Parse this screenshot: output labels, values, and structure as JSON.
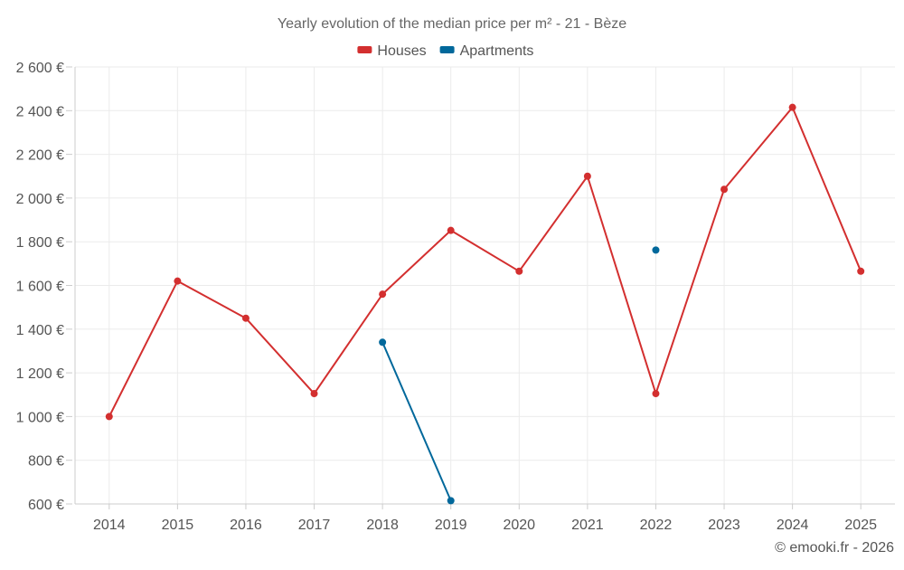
{
  "chart_data": {
    "type": "line",
    "title": "Yearly evolution of the median price per m² - 21 - Bèze",
    "categories": [
      "2014",
      "2015",
      "2016",
      "2017",
      "2018",
      "2019",
      "2020",
      "2021",
      "2022",
      "2023",
      "2024",
      "2025"
    ],
    "series": [
      {
        "name": "Houses",
        "color": "#d32f2f",
        "values": [
          1000,
          1620,
          1450,
          1105,
          1560,
          1852,
          1665,
          2100,
          1105,
          2040,
          2415,
          1665
        ]
      },
      {
        "name": "Apartments",
        "color": "#01689b",
        "values": [
          null,
          null,
          null,
          null,
          1340,
          615,
          null,
          null,
          1762,
          null,
          null,
          null
        ]
      }
    ],
    "y_ticks": [
      600,
      800,
      1000,
      1200,
      1400,
      1600,
      1800,
      2000,
      2200,
      2400,
      2600
    ],
    "y_tick_labels": [
      "600 €",
      "800 €",
      "1 000 €",
      "1 200 €",
      "1 400 €",
      "1 600 €",
      "1 800 €",
      "2 000 €",
      "2 200 €",
      "2 400 €",
      "2 600 €"
    ],
    "ylim": [
      600,
      2600
    ],
    "xlabel": "",
    "ylabel": "",
    "grid": true,
    "legend_position": "top-center",
    "credit": "© emooki.fr - 2026"
  }
}
